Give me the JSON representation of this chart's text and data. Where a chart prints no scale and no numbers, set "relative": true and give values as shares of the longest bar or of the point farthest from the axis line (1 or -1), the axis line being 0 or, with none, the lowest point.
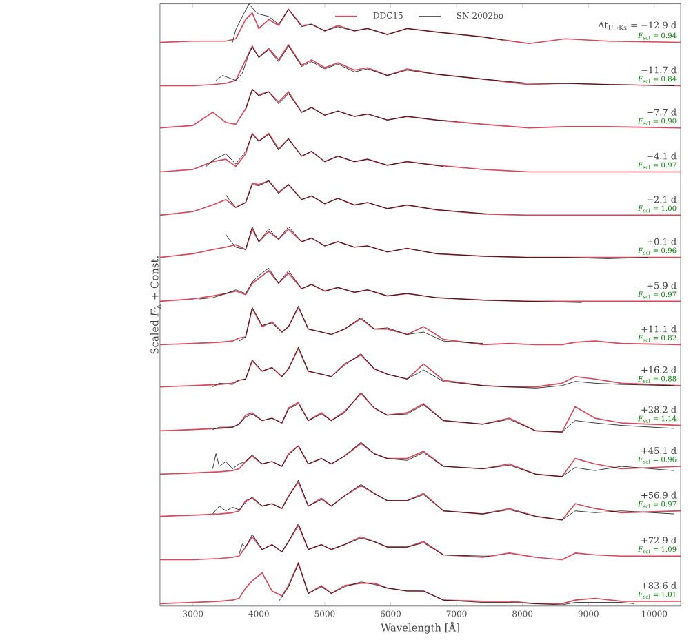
{
  "chart_data": {
    "type": "line",
    "relative": true,
    "xlabel": "Wavelength [Å]",
    "ylabel": "Scaled *F*$_{λ}$ + Const.",
    "xlim": [
      2500,
      10400
    ],
    "xticks": [
      3000,
      4000,
      5000,
      6000,
      7000,
      8000,
      9000,
      10000
    ],
    "legend": "top",
    "annotations": [
      "Δt$_{U→Ks}$ = −12.9 d",
      "*F*$_{scl}$ = 0.94",
      "−11.7 d",
      "*F*$_{scl}$ = 0.84",
      "−7.7 d",
      "*F*$_{scl}$ = 0.90",
      "−4.1 d",
      "*F*$_{scl}$ = 0.97",
      "−2.1 d",
      "*F*$_{scl}$ = 1.00",
      "+0.1 d",
      "*F*$_{scl}$ = 0.96",
      "+5.9 d",
      "*F*$_{scl}$ = 0.97",
      "+11.1 d",
      "*F*$_{scl}$ = 0.82",
      "+16.2 d",
      "*F*$_{scl}$ = 0.88",
      "+28.2 d",
      "*F*$_{scl}$ = 1.14",
      "+45.1 d",
      "*F*$_{scl}$ = 0.96",
      "+56.9 d",
      "*F*$_{scl}$ = 0.97",
      "+72.9 d",
      "*F*$_{scl}$ = 1.09",
      "+83.6 d",
      "*F*$_{scl}$ = 1.01"
    ],
    "series": [
      {
        "name": "DDC15",
        "color": "#d9475a",
        "x": [
          2500,
          3000,
          3300,
          3500,
          3650,
          3800,
          3900,
          4000,
          4150,
          4300,
          4450,
          4650,
          4800,
          5000,
          5200,
          5450,
          5650,
          5950,
          6250,
          6700,
          7400,
          8100,
          8650,
          9300,
          10400
        ],
        "values": [
          0.936,
          0.938,
          0.938,
          0.938,
          0.942,
          0.974,
          0.985,
          0.959,
          0.974,
          0.964,
          0.991,
          0.964,
          0.966,
          0.955,
          0.964,
          0.955,
          0.959,
          0.949,
          0.959,
          0.953,
          0.945,
          0.934,
          0.942,
          0.938,
          0.936
        ]
      },
      {
        "name": "SN 2002bo",
        "color": "#111111",
        "x": [
          3600,
          3650,
          3750,
          3850,
          3950,
          4000,
          4150,
          4300,
          4450,
          4650,
          4800,
          5000,
          5200,
          5450,
          5650,
          5950,
          6250,
          6700,
          7400,
          7700
        ],
        "values": [
          0.936,
          0.957,
          0.979,
          1.0,
          0.987,
          0.983,
          0.979,
          0.966,
          0.991,
          0.962,
          0.966,
          0.955,
          0.962,
          0.955,
          0.959,
          0.949,
          0.959,
          0.953,
          0.945,
          0.94
        ]
      },
      {
        "color": "#d9475a",
        "x": [
          2500,
          3000,
          3300,
          3500,
          3650,
          3800,
          3900,
          4000,
          4150,
          4300,
          4450,
          4650,
          4800,
          5000,
          5200,
          5450,
          5650,
          5950,
          6250,
          6700,
          7400,
          8100,
          8650,
          9300,
          10400
        ],
        "values": [
          0.864,
          0.864,
          0.866,
          0.868,
          0.873,
          0.907,
          0.93,
          0.911,
          0.926,
          0.907,
          0.932,
          0.898,
          0.907,
          0.894,
          0.902,
          0.89,
          0.894,
          0.881,
          0.892,
          0.883,
          0.875,
          0.866,
          0.868,
          0.866,
          0.864
        ]
      },
      {
        "color": "#111111",
        "x": [
          3350,
          3450,
          3550,
          3650,
          3750,
          3850,
          3900,
          4000,
          4150,
          4300,
          4450,
          4650,
          4800,
          5000,
          5200,
          5450,
          5650,
          5950,
          6250,
          6700,
          7400,
          8100,
          8650,
          9300,
          10300
        ],
        "values": [
          0.873,
          0.881,
          0.877,
          0.873,
          0.885,
          0.917,
          0.928,
          0.911,
          0.924,
          0.904,
          0.93,
          0.896,
          0.904,
          0.892,
          0.9,
          0.887,
          0.892,
          0.881,
          0.89,
          0.883,
          0.875,
          0.868,
          0.868,
          0.866,
          0.864
        ]
      },
      {
        "color": "#d9475a",
        "x": [
          2500,
          3000,
          3300,
          3500,
          3650,
          3800,
          3900,
          4000,
          4150,
          4300,
          4450,
          4650,
          4800,
          5000,
          5200,
          5450,
          5650,
          5950,
          6250,
          6700,
          7400,
          8100,
          8650,
          9300,
          10400
        ],
        "values": [
          0.794,
          0.798,
          0.82,
          0.803,
          0.8,
          0.826,
          0.858,
          0.849,
          0.854,
          0.837,
          0.854,
          0.82,
          0.828,
          0.815,
          0.822,
          0.813,
          0.817,
          0.807,
          0.813,
          0.807,
          0.8,
          0.794,
          0.796,
          0.796,
          0.794
        ]
      },
      {
        "color": "#111111",
        "x": [
          3800,
          3900,
          4000,
          4150,
          4300,
          4450,
          4650,
          4800,
          5000,
          5200,
          5450,
          5650,
          5950,
          6250,
          6700,
          7000
        ],
        "values": [
          0.824,
          0.858,
          0.847,
          0.854,
          0.834,
          0.851,
          0.82,
          0.828,
          0.815,
          0.822,
          0.813,
          0.817,
          0.807,
          0.813,
          0.807,
          0.805
        ]
      },
      {
        "color": "#d9475a",
        "x": [
          2500,
          3000,
          3300,
          3500,
          3650,
          3800,
          3900,
          4000,
          4150,
          4300,
          4450,
          4650,
          4800,
          5000,
          5200,
          5450,
          5650,
          5950,
          6250,
          6700,
          7400,
          8100,
          8650,
          9300,
          10400
        ],
        "values": [
          0.721,
          0.725,
          0.738,
          0.742,
          0.73,
          0.751,
          0.785,
          0.772,
          0.785,
          0.759,
          0.776,
          0.747,
          0.755,
          0.738,
          0.747,
          0.738,
          0.742,
          0.732,
          0.738,
          0.732,
          0.725,
          0.721,
          0.721,
          0.721,
          0.721
        ]
      },
      {
        "color": "#111111",
        "x": [
          3200,
          3300,
          3500,
          3650,
          3800,
          3900,
          4000,
          4150,
          4300,
          4450,
          4650,
          4800,
          5000,
          5200,
          5450,
          5650,
          5950,
          6250,
          6800
        ],
        "values": [
          0.73,
          0.74,
          0.751,
          0.734,
          0.755,
          0.783,
          0.772,
          0.783,
          0.757,
          0.776,
          0.747,
          0.755,
          0.738,
          0.747,
          0.738,
          0.742,
          0.732,
          0.738,
          0.73
        ]
      },
      {
        "color": "#d9475a",
        "x": [
          2500,
          3000,
          3300,
          3500,
          3650,
          3800,
          3900,
          4000,
          4150,
          4300,
          4450,
          4650,
          4800,
          5000,
          5200,
          5450,
          5650,
          5950,
          6250,
          6700,
          7400,
          8100,
          8650,
          9300,
          10400
        ],
        "values": [
          0.649,
          0.655,
          0.666,
          0.675,
          0.662,
          0.67,
          0.702,
          0.7,
          0.706,
          0.687,
          0.7,
          0.675,
          0.681,
          0.668,
          0.677,
          0.666,
          0.67,
          0.66,
          0.666,
          0.658,
          0.651,
          0.649,
          0.649,
          0.649,
          0.649
        ]
      },
      {
        "color": "#111111",
        "x": [
          3500,
          3550,
          3650,
          3800,
          3900,
          4000,
          4150,
          4300,
          4450,
          4650,
          4800,
          5000,
          5200,
          5450,
          5650,
          5950,
          6250,
          6700,
          7500
        ],
        "values": [
          0.683,
          0.675,
          0.662,
          0.67,
          0.7,
          0.698,
          0.706,
          0.685,
          0.7,
          0.675,
          0.681,
          0.668,
          0.677,
          0.666,
          0.67,
          0.66,
          0.666,
          0.658,
          0.651
        ]
      },
      {
        "color": "#d9475a",
        "x": [
          2500,
          3000,
          3300,
          3500,
          3650,
          3800,
          3900,
          4000,
          4150,
          4300,
          4450,
          4650,
          4800,
          5000,
          5200,
          5450,
          5650,
          5950,
          6250,
          6700,
          7400,
          8100,
          8650,
          9300,
          10400
        ],
        "values": [
          0.579,
          0.585,
          0.592,
          0.596,
          0.6,
          0.592,
          0.626,
          0.605,
          0.622,
          0.609,
          0.626,
          0.605,
          0.611,
          0.598,
          0.605,
          0.596,
          0.598,
          0.588,
          0.594,
          0.585,
          0.581,
          0.579,
          0.579,
          0.579,
          0.579
        ]
      },
      {
        "color": "#111111",
        "x": [
          3500,
          3550,
          3650,
          3800,
          3900,
          4000,
          4150,
          4300,
          4450,
          4650,
          4800,
          5000,
          5200,
          5450,
          5650,
          5950,
          6250,
          6700,
          7400,
          8100,
          8650,
          9300,
          9900
        ],
        "values": [
          0.617,
          0.609,
          0.596,
          0.592,
          0.63,
          0.605,
          0.626,
          0.609,
          0.63,
          0.605,
          0.611,
          0.598,
          0.605,
          0.596,
          0.598,
          0.588,
          0.594,
          0.585,
          0.581,
          0.579,
          0.579,
          0.577,
          0.579
        ]
      },
      {
        "color": "#d9475a",
        "x": [
          2500,
          3000,
          3300,
          3500,
          3650,
          3800,
          3900,
          4000,
          4150,
          4300,
          4450,
          4650,
          4800,
          5000,
          5200,
          5450,
          5650,
          5950,
          6250,
          6700,
          7400,
          8100,
          8650,
          9300,
          10400
        ],
        "values": [
          0.506,
          0.51,
          0.515,
          0.519,
          0.523,
          0.517,
          0.536,
          0.544,
          0.557,
          0.536,
          0.553,
          0.527,
          0.534,
          0.523,
          0.529,
          0.521,
          0.525,
          0.515,
          0.519,
          0.512,
          0.508,
          0.506,
          0.506,
          0.506,
          0.506
        ]
      },
      {
        "color": "#111111",
        "x": [
          3100,
          3300,
          3500,
          3650,
          3800,
          3900,
          4000,
          4150,
          4300,
          4450,
          4650,
          4800,
          5000,
          5200,
          5450,
          5650,
          5950,
          6250,
          6700,
          7400,
          8100,
          8900
        ],
        "values": [
          0.51,
          0.512,
          0.519,
          0.525,
          0.519,
          0.538,
          0.549,
          0.561,
          0.536,
          0.557,
          0.527,
          0.534,
          0.523,
          0.529,
          0.521,
          0.525,
          0.515,
          0.519,
          0.512,
          0.508,
          0.506,
          0.504
        ]
      },
      {
        "color": "#d9475a",
        "x": [
          2500,
          3000,
          3400,
          3600,
          3700,
          3800,
          3900,
          4050,
          4200,
          4350,
          4450,
          4600,
          4750,
          4950,
          5100,
          5300,
          5550,
          5750,
          5950,
          6250,
          6500,
          6800,
          7400,
          7800,
          8200,
          8600,
          8800,
          9100,
          9500,
          10400
        ],
        "values": [
          0.434,
          0.436,
          0.438,
          0.44,
          0.445,
          0.447,
          0.494,
          0.464,
          0.472,
          0.455,
          0.464,
          0.496,
          0.46,
          0.455,
          0.451,
          0.46,
          0.477,
          0.46,
          0.46,
          0.451,
          0.464,
          0.443,
          0.434,
          0.436,
          0.434,
          0.434,
          0.438,
          0.44,
          0.436,
          0.434
        ]
      },
      {
        "color": "#111111",
        "x": [
          3700,
          3800,
          3900,
          4050,
          4200,
          4350,
          4450,
          4600,
          4750,
          4950,
          5100,
          5300,
          5550,
          5750,
          5950,
          6250,
          6500,
          6800,
          7400
        ],
        "values": [
          0.44,
          0.447,
          0.496,
          0.466,
          0.47,
          0.455,
          0.464,
          0.498,
          0.46,
          0.455,
          0.451,
          0.46,
          0.479,
          0.46,
          0.462,
          0.451,
          0.455,
          0.44,
          0.436
        ]
      },
      {
        "color": "#d9475a",
        "x": [
          2500,
          3000,
          3400,
          3600,
          3700,
          3800,
          3900,
          4050,
          4200,
          4350,
          4450,
          4600,
          4750,
          4950,
          5100,
          5300,
          5550,
          5750,
          5950,
          6250,
          6500,
          6800,
          7400,
          7800,
          8200,
          8600,
          8800,
          9100,
          9500,
          10400
        ],
        "values": [
          0.364,
          0.366,
          0.368,
          0.37,
          0.375,
          0.377,
          0.407,
          0.39,
          0.396,
          0.381,
          0.394,
          0.428,
          0.39,
          0.385,
          0.381,
          0.402,
          0.417,
          0.394,
          0.385,
          0.377,
          0.402,
          0.375,
          0.366,
          0.364,
          0.364,
          0.37,
          0.381,
          0.377,
          0.37,
          0.366
        ]
      },
      {
        "color": "#111111",
        "x": [
          3300,
          3400,
          3600,
          3700,
          3800,
          3900,
          4050,
          4200,
          4350,
          4450,
          4600,
          4750,
          4950,
          5100,
          5300,
          5550,
          5750,
          5950,
          6250,
          6500,
          6800,
          7400,
          7800,
          8200,
          8600,
          8800,
          9100,
          9500,
          10300
        ],
        "values": [
          0.364,
          0.37,
          0.368,
          0.375,
          0.377,
          0.409,
          0.39,
          0.396,
          0.381,
          0.394,
          0.43,
          0.39,
          0.385,
          0.381,
          0.4,
          0.419,
          0.394,
          0.385,
          0.377,
          0.392,
          0.373,
          0.366,
          0.364,
          0.362,
          0.366,
          0.373,
          0.37,
          0.368,
          0.366
        ]
      },
      {
        "color": "#d9475a",
        "x": [
          2500,
          3000,
          3400,
          3600,
          3700,
          3800,
          3900,
          4050,
          4200,
          4350,
          4450,
          4600,
          4750,
          4950,
          5100,
          5300,
          5550,
          5750,
          5950,
          6250,
          6500,
          6800,
          7400,
          7800,
          8200,
          8600,
          8800,
          9100,
          9500,
          10400
        ],
        "values": [
          0.291,
          0.293,
          0.295,
          0.297,
          0.302,
          0.317,
          0.321,
          0.308,
          0.312,
          0.304,
          0.329,
          0.338,
          0.308,
          0.321,
          0.308,
          0.323,
          0.353,
          0.329,
          0.317,
          0.321,
          0.336,
          0.308,
          0.302,
          0.312,
          0.291,
          0.289,
          0.331,
          0.312,
          0.304,
          0.3
        ]
      },
      {
        "color": "#111111",
        "x": [
          3300,
          3400,
          3600,
          3700,
          3800,
          3900,
          4050,
          4200,
          4350,
          4450,
          4600,
          4750,
          4950,
          5100,
          5300,
          5550,
          5750,
          5950,
          6250,
          6500,
          6800,
          7400,
          7800,
          8200,
          8600,
          8800,
          9100,
          9500,
          10300
        ],
        "values": [
          0.293,
          0.297,
          0.297,
          0.302,
          0.314,
          0.319,
          0.308,
          0.312,
          0.304,
          0.327,
          0.336,
          0.308,
          0.319,
          0.308,
          0.321,
          0.355,
          0.329,
          0.317,
          0.319,
          0.334,
          0.308,
          0.302,
          0.31,
          0.291,
          0.289,
          0.308,
          0.304,
          0.3,
          0.295
        ]
      },
      {
        "color": "#d9475a",
        "x": [
          2500,
          3000,
          3400,
          3600,
          3700,
          3800,
          3900,
          4050,
          4200,
          4350,
          4450,
          4600,
          4750,
          4950,
          5100,
          5300,
          5550,
          5750,
          5950,
          6250,
          6500,
          6800,
          7400,
          7800,
          8200,
          8600,
          8800,
          9100,
          9500,
          10400
        ],
        "values": [
          0.219,
          0.221,
          0.223,
          0.225,
          0.228,
          0.24,
          0.249,
          0.236,
          0.24,
          0.232,
          0.253,
          0.266,
          0.236,
          0.245,
          0.236,
          0.249,
          0.27,
          0.253,
          0.245,
          0.245,
          0.257,
          0.232,
          0.228,
          0.236,
          0.219,
          0.215,
          0.245,
          0.236,
          0.228,
          0.232
        ]
      },
      {
        "color": "#111111",
        "x": [
          3300,
          3350,
          3400,
          3500,
          3600,
          3700,
          3800,
          3900,
          4050,
          4200,
          4350,
          4450,
          4600,
          4750,
          4950,
          5100,
          5300,
          5550,
          5750,
          5950,
          6250,
          6500,
          6800,
          7400,
          7800,
          8200,
          8600,
          8800,
          9100,
          9500,
          10300
        ],
        "values": [
          0.228,
          0.253,
          0.232,
          0.24,
          0.228,
          0.236,
          0.24,
          0.251,
          0.236,
          0.24,
          0.232,
          0.251,
          0.266,
          0.236,
          0.245,
          0.236,
          0.249,
          0.272,
          0.253,
          0.245,
          0.242,
          0.255,
          0.232,
          0.228,
          0.234,
          0.219,
          0.215,
          0.23,
          0.225,
          0.232,
          0.225
        ]
      },
      {
        "color": "#d9475a",
        "x": [
          2500,
          3000,
          3400,
          3600,
          3700,
          3800,
          3900,
          4050,
          4200,
          4350,
          4450,
          4600,
          4750,
          4950,
          5100,
          5300,
          5550,
          5750,
          5950,
          6250,
          6500,
          6800,
          7400,
          7800,
          8200,
          8600,
          8800,
          9100,
          9500,
          10400
        ],
        "values": [
          0.149,
          0.151,
          0.153,
          0.155,
          0.158,
          0.175,
          0.179,
          0.166,
          0.17,
          0.162,
          0.183,
          0.206,
          0.166,
          0.179,
          0.166,
          0.183,
          0.2,
          0.187,
          0.175,
          0.175,
          0.187,
          0.158,
          0.153,
          0.162,
          0.149,
          0.143,
          0.17,
          0.162,
          0.155,
          0.158
        ]
      },
      {
        "color": "#111111",
        "x": [
          3300,
          3400,
          3500,
          3600,
          3700,
          3800,
          3900,
          4050,
          4200,
          4350,
          4450,
          4600,
          4750,
          4950,
          5100,
          5300,
          5550,
          5750,
          5950,
          6250,
          6500,
          6800,
          7400,
          7800,
          8200,
          8600,
          8800,
          9100,
          9500,
          10300
        ],
        "values": [
          0.153,
          0.166,
          0.158,
          0.164,
          0.16,
          0.172,
          0.181,
          0.166,
          0.17,
          0.162,
          0.181,
          0.209,
          0.166,
          0.177,
          0.166,
          0.183,
          0.202,
          0.187,
          0.175,
          0.175,
          0.185,
          0.158,
          0.153,
          0.16,
          0.149,
          0.143,
          0.158,
          0.155,
          0.158,
          0.153
        ]
      },
      {
        "color": "#d9475a",
        "x": [
          2500,
          3000,
          3400,
          3600,
          3700,
          3800,
          3900,
          4050,
          4200,
          4350,
          4450,
          4600,
          4750,
          4950,
          5100,
          5300,
          5550,
          5750,
          5950,
          6250,
          6500,
          6800,
          7400,
          7800,
          8200,
          8600,
          8800,
          9100,
          9500,
          10400
        ],
        "values": [
          0.077,
          0.077,
          0.079,
          0.081,
          0.083,
          0.098,
          0.115,
          0.094,
          0.102,
          0.09,
          0.107,
          0.134,
          0.094,
          0.102,
          0.094,
          0.102,
          0.115,
          0.107,
          0.098,
          0.098,
          0.107,
          0.085,
          0.081,
          0.088,
          0.081,
          0.077,
          0.088,
          0.085,
          0.083,
          0.083
        ]
      },
      {
        "color": "#111111",
        "x": [
          3700,
          3750,
          3800,
          3900,
          4050,
          4200,
          4350,
          4450,
          4600,
          4750,
          4950,
          5100,
          5300,
          5550,
          5750,
          5950,
          6250,
          6500,
          6800,
          7400,
          7500
        ],
        "values": [
          0.086,
          0.103,
          0.098,
          0.119,
          0.094,
          0.102,
          0.09,
          0.107,
          0.137,
          0.094,
          0.102,
          0.094,
          0.102,
          0.113,
          0.107,
          0.098,
          0.098,
          0.105,
          0.085,
          0.083,
          0.083
        ]
      },
      {
        "color": "#d9475a",
        "x": [
          2500,
          3000,
          3400,
          3600,
          3700,
          3800,
          3900,
          4050,
          4200,
          4350,
          4450,
          4600,
          4750,
          4950,
          5100,
          5300,
          5550,
          5750,
          5950,
          6250,
          6500,
          6800,
          7400,
          7800,
          8200,
          8600,
          8800,
          9100,
          9500,
          10400
        ],
        "values": [
          0.004,
          0.006,
          0.008,
          0.01,
          0.013,
          0.03,
          0.042,
          0.055,
          0.025,
          0.017,
          0.034,
          0.072,
          0.021,
          0.034,
          0.021,
          0.034,
          0.038,
          0.038,
          0.03,
          0.025,
          0.025,
          0.01,
          0.008,
          0.008,
          0.004,
          0.004,
          0.01,
          0.013,
          0.008,
          0.008
        ]
      },
      {
        "color": "#111111",
        "x": [
          4300,
          4350,
          4450,
          4600,
          4750,
          4950,
          5100,
          5300,
          5550,
          5750,
          5950,
          6250,
          6500,
          6800,
          7400,
          7800,
          8200,
          8600,
          8800,
          9100,
          9500,
          9700
        ],
        "values": [
          0.008,
          0.015,
          0.032,
          0.07,
          0.021,
          0.032,
          0.021,
          0.032,
          0.04,
          0.036,
          0.03,
          0.025,
          0.025,
          0.01,
          0.006,
          0.006,
          0.004,
          0.002,
          0.006,
          0.006,
          0.006,
          0.004
        ]
      }
    ]
  }
}
